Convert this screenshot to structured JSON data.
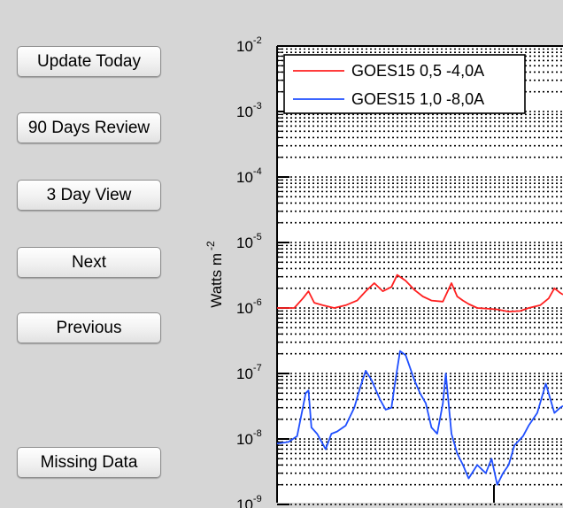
{
  "buttons": {
    "update_today": "Update Today",
    "review_90": "90 Days Review",
    "view_3day": "3 Day View",
    "next": "Next",
    "previous": "Previous",
    "missing_data": "Missing Data"
  },
  "chart_data": {
    "type": "line",
    "ylabel": "Watts m",
    "ylabel_exponent": "-2",
    "yscale": "log",
    "ylim": [
      1e-09,
      0.01
    ],
    "grid": true,
    "legend_position": "top",
    "y_ticks": [
      {
        "base": "10",
        "exp": "-2",
        "value": 0.01
      },
      {
        "base": "10",
        "exp": "-3",
        "value": 0.001
      },
      {
        "base": "10",
        "exp": "-4",
        "value": 0.0001
      },
      {
        "base": "10",
        "exp": "-5",
        "value": 1e-05
      },
      {
        "base": "10",
        "exp": "-6",
        "value": 1e-06
      },
      {
        "base": "10",
        "exp": "-7",
        "value": 1e-07
      },
      {
        "base": "10",
        "exp": "-8",
        "value": 1e-08
      },
      {
        "base": "10",
        "exp": "-9",
        "value": 1e-09
      }
    ],
    "series": [
      {
        "name": "GOES15 0,5 -4,0A",
        "color": "#ff2020",
        "x": [
          0,
          0.06,
          0.09,
          0.11,
          0.13,
          0.16,
          0.2,
          0.24,
          0.28,
          0.31,
          0.34,
          0.37,
          0.4,
          0.42,
          0.45,
          0.48,
          0.51,
          0.54,
          0.58,
          0.61,
          0.63,
          0.65,
          0.67,
          0.7,
          0.73,
          0.77,
          0.81,
          0.85,
          0.88,
          0.92,
          0.95,
          0.97,
          0.99,
          1.0
        ],
        "values": [
          1e-06,
          1e-06,
          1.4e-06,
          1.8e-06,
          1.2e-06,
          1.1e-06,
          1e-06,
          1.1e-06,
          1.3e-06,
          1.8e-06,
          2.4e-06,
          1.8e-06,
          2.1e-06,
          3.2e-06,
          2.6e-06,
          1.9e-06,
          1.5e-06,
          1.3e-06,
          1.25e-06,
          2.4e-06,
          1.5e-06,
          1.3e-06,
          1.15e-06,
          1e-06,
          9.8e-07,
          9.5e-07,
          8.8e-07,
          9e-07,
          1e-06,
          1.1e-06,
          1.4e-06,
          2e-06,
          1.7e-06,
          1.6e-06
        ]
      },
      {
        "name": "GOES15 1,0 -8,0A",
        "color": "#1f4fff",
        "x": [
          0,
          0.04,
          0.07,
          0.09,
          0.1,
          0.11,
          0.12,
          0.14,
          0.17,
          0.19,
          0.21,
          0.24,
          0.27,
          0.29,
          0.31,
          0.33,
          0.36,
          0.38,
          0.4,
          0.41,
          0.43,
          0.45,
          0.48,
          0.5,
          0.52,
          0.54,
          0.56,
          0.58,
          0.59,
          0.61,
          0.63,
          0.65,
          0.67,
          0.7,
          0.73,
          0.75,
          0.77,
          0.79,
          0.81,
          0.83,
          0.86,
          0.88,
          0.91,
          0.94,
          0.97,
          0.99,
          1.0
        ],
        "values": [
          8.5e-09,
          9e-09,
          1.1e-08,
          3e-08,
          5e-08,
          5.5e-08,
          1.5e-08,
          1.2e-08,
          7e-09,
          1.2e-08,
          1.3e-08,
          1.6e-08,
          3e-08,
          6e-08,
          1.1e-07,
          8e-08,
          4e-08,
          2.8e-08,
          3e-08,
          6e-08,
          2.2e-07,
          1.9e-07,
          8e-08,
          5e-08,
          3.5e-08,
          1.5e-08,
          1.2e-08,
          3.5e-08,
          1e-07,
          1.2e-08,
          6e-09,
          4e-09,
          2.5e-09,
          4e-09,
          3e-09,
          5e-09,
          2e-09,
          3e-09,
          4e-09,
          8e-09,
          1.1e-08,
          1.6e-08,
          2.5e-08,
          7e-08,
          2.5e-08,
          3e-08,
          3.2e-08
        ]
      }
    ]
  }
}
